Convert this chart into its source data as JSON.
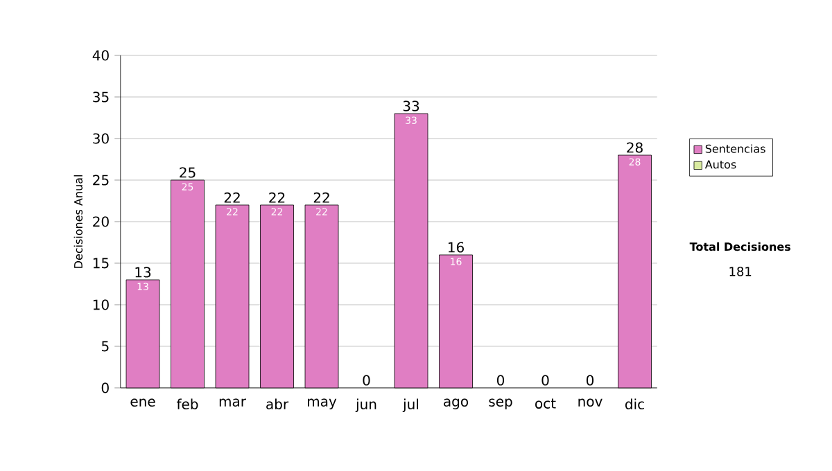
{
  "chart_data": {
    "type": "bar",
    "ylabel": "Decisiones Anual",
    "stacked": true,
    "categories": [
      "ene",
      "feb",
      "mar",
      "abr",
      "may",
      "jun",
      "jul",
      "ago",
      "sep",
      "oct",
      "nov",
      "dic"
    ],
    "series": [
      {
        "name": "Sentencias",
        "color": "#e07ec3",
        "values": [
          13,
          25,
          22,
          22,
          22,
          0,
          33,
          16,
          0,
          0,
          0,
          28
        ],
        "value_labels": [
          "13",
          "25",
          "22",
          "22",
          "22",
          null,
          "33",
          "16",
          null,
          null,
          null,
          "28"
        ]
      },
      {
        "name": "Autos",
        "color": "#d9eaa0",
        "values": [
          0,
          0,
          0,
          0,
          0,
          0,
          0,
          0,
          0,
          0,
          0,
          0
        ]
      }
    ],
    "totals": [
      "13",
      "25",
      "22",
      "22",
      "22",
      "0",
      "33",
      "16",
      "0",
      "0",
      "0",
      "28"
    ],
    "ylim": [
      0,
      40
    ],
    "yticks": [
      0,
      5,
      10,
      15,
      20,
      25,
      30,
      35,
      40
    ],
    "grid": "y",
    "legend": "right",
    "annotations": [
      "Total Decisiones",
      "181"
    ]
  }
}
